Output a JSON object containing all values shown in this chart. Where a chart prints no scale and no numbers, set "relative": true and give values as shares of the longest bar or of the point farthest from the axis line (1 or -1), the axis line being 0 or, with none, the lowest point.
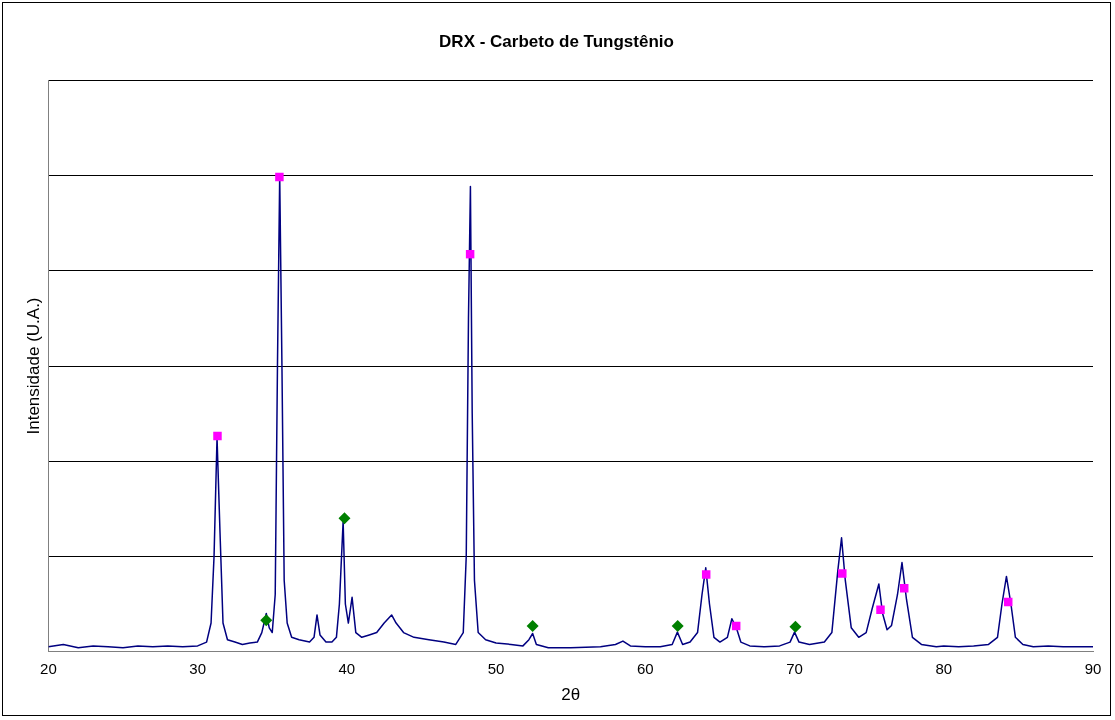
{
  "chart_data": {
    "type": "line",
    "title": "DRX - Carbeto de Tungstênio",
    "xlabel": "2θ",
    "ylabel": "Intensidade (U.A.)",
    "relative": true,
    "xlim": [
      20,
      90
    ],
    "xticks": [
      20,
      30,
      40,
      50,
      60,
      70,
      80,
      90
    ],
    "grid": "y",
    "legend": false,
    "series": [
      {
        "color": "#000080",
        "marker": "none",
        "x": [
          20,
          21,
          22,
          23,
          24,
          25,
          26,
          27,
          28,
          29,
          30,
          30.6,
          30.9,
          31.1,
          31.3,
          31.5,
          31.7,
          32,
          32.5,
          33,
          33.5,
          34,
          34.3,
          34.6,
          34.8,
          35.0,
          35.2,
          35.35,
          35.5,
          35.65,
          35.8,
          36,
          36.3,
          36.8,
          37.5,
          37.8,
          38.0,
          38.2,
          38.6,
          39,
          39.3,
          39.5,
          39.6,
          39.75,
          39.9,
          40.1,
          40.35,
          40.6,
          41,
          41.5,
          42,
          42.5,
          43.0,
          43.3,
          43.8,
          44.5,
          45.5,
          46.5,
          47.3,
          47.8,
          48.0,
          48.15,
          48.28,
          48.4,
          48.55,
          48.8,
          49.3,
          50,
          51,
          51.8,
          52.2,
          52.45,
          52.7,
          53.5,
          55,
          57,
          58,
          58.5,
          59,
          60,
          61,
          61.8,
          62.15,
          62.5,
          63,
          63.5,
          63.8,
          64.05,
          64.3,
          64.6,
          65,
          65.5,
          65.8,
          66.1,
          66.4,
          67,
          68,
          69,
          69.7,
          70.0,
          70.3,
          71,
          72,
          72.5,
          72.9,
          73.15,
          73.4,
          73.8,
          74.3,
          74.8,
          75.2,
          75.65,
          75.9,
          76.2,
          76.5,
          76.9,
          77.2,
          77.5,
          77.9,
          78.5,
          79.5,
          80,
          81,
          82,
          83,
          83.6,
          83.9,
          84.2,
          84.5,
          84.8,
          85.3,
          86,
          87,
          88,
          89,
          90
        ],
        "values": [
          0.01,
          0.015,
          0.008,
          0.012,
          0.01,
          0.008,
          0.012,
          0.01,
          0.012,
          0.01,
          0.012,
          0.02,
          0.06,
          0.2,
          0.45,
          0.25,
          0.06,
          0.025,
          0.02,
          0.015,
          0.018,
          0.02,
          0.04,
          0.08,
          0.05,
          0.04,
          0.12,
          0.6,
          1,
          0.6,
          0.15,
          0.06,
          0.03,
          0.025,
          0.02,
          0.03,
          0.077,
          0.035,
          0.02,
          0.02,
          0.03,
          0.1,
          0.17,
          0.274,
          0.1,
          0.06,
          0.114,
          0.04,
          0.03,
          0.035,
          0.04,
          0.06,
          0.077,
          0.06,
          0.04,
          0.03,
          0.025,
          0.02,
          0.015,
          0.04,
          0.2,
          0.7,
          0.977,
          0.5,
          0.15,
          0.04,
          0.025,
          0.018,
          0.015,
          0.012,
          0.025,
          0.038,
          0.015,
          0.008,
          0.008,
          0.01,
          0.015,
          0.022,
          0.012,
          0.01,
          0.01,
          0.015,
          0.041,
          0.015,
          0.02,
          0.04,
          0.12,
          0.176,
          0.1,
          0.03,
          0.02,
          0.03,
          0.069,
          0.05,
          0.02,
          0.012,
          0.01,
          0.012,
          0.02,
          0.041,
          0.02,
          0.015,
          0.02,
          0.04,
          0.17,
          0.239,
          0.15,
          0.05,
          0.03,
          0.04,
          0.09,
          0.142,
          0.08,
          0.046,
          0.055,
          0.12,
          0.187,
          0.11,
          0.03,
          0.015,
          0.01,
          0.012,
          0.01,
          0.012,
          0.015,
          0.03,
          0.1,
          0.158,
          0.1,
          0.03,
          0.015,
          0.01,
          0.012,
          0.01,
          0.01,
          0.01
        ]
      },
      {
        "type": "scatter",
        "color": "#ff00ff",
        "marker": "square",
        "x": [
          31.33,
          35.48,
          48.26,
          64.08,
          66.09,
          73.2,
          75.76,
          77.35,
          84.32
        ],
        "values": [
          0.453,
          0.997,
          0.835,
          0.162,
          0.054,
          0.164,
          0.088,
          0.133,
          0.104
        ]
      },
      {
        "type": "scatter",
        "color": "#008000",
        "marker": "diamond",
        "x": [
          34.6,
          39.84,
          52.45,
          62.17,
          70.06
        ],
        "values": [
          0.066,
          0.28,
          0.054,
          0.054,
          0.052
        ]
      }
    ]
  }
}
